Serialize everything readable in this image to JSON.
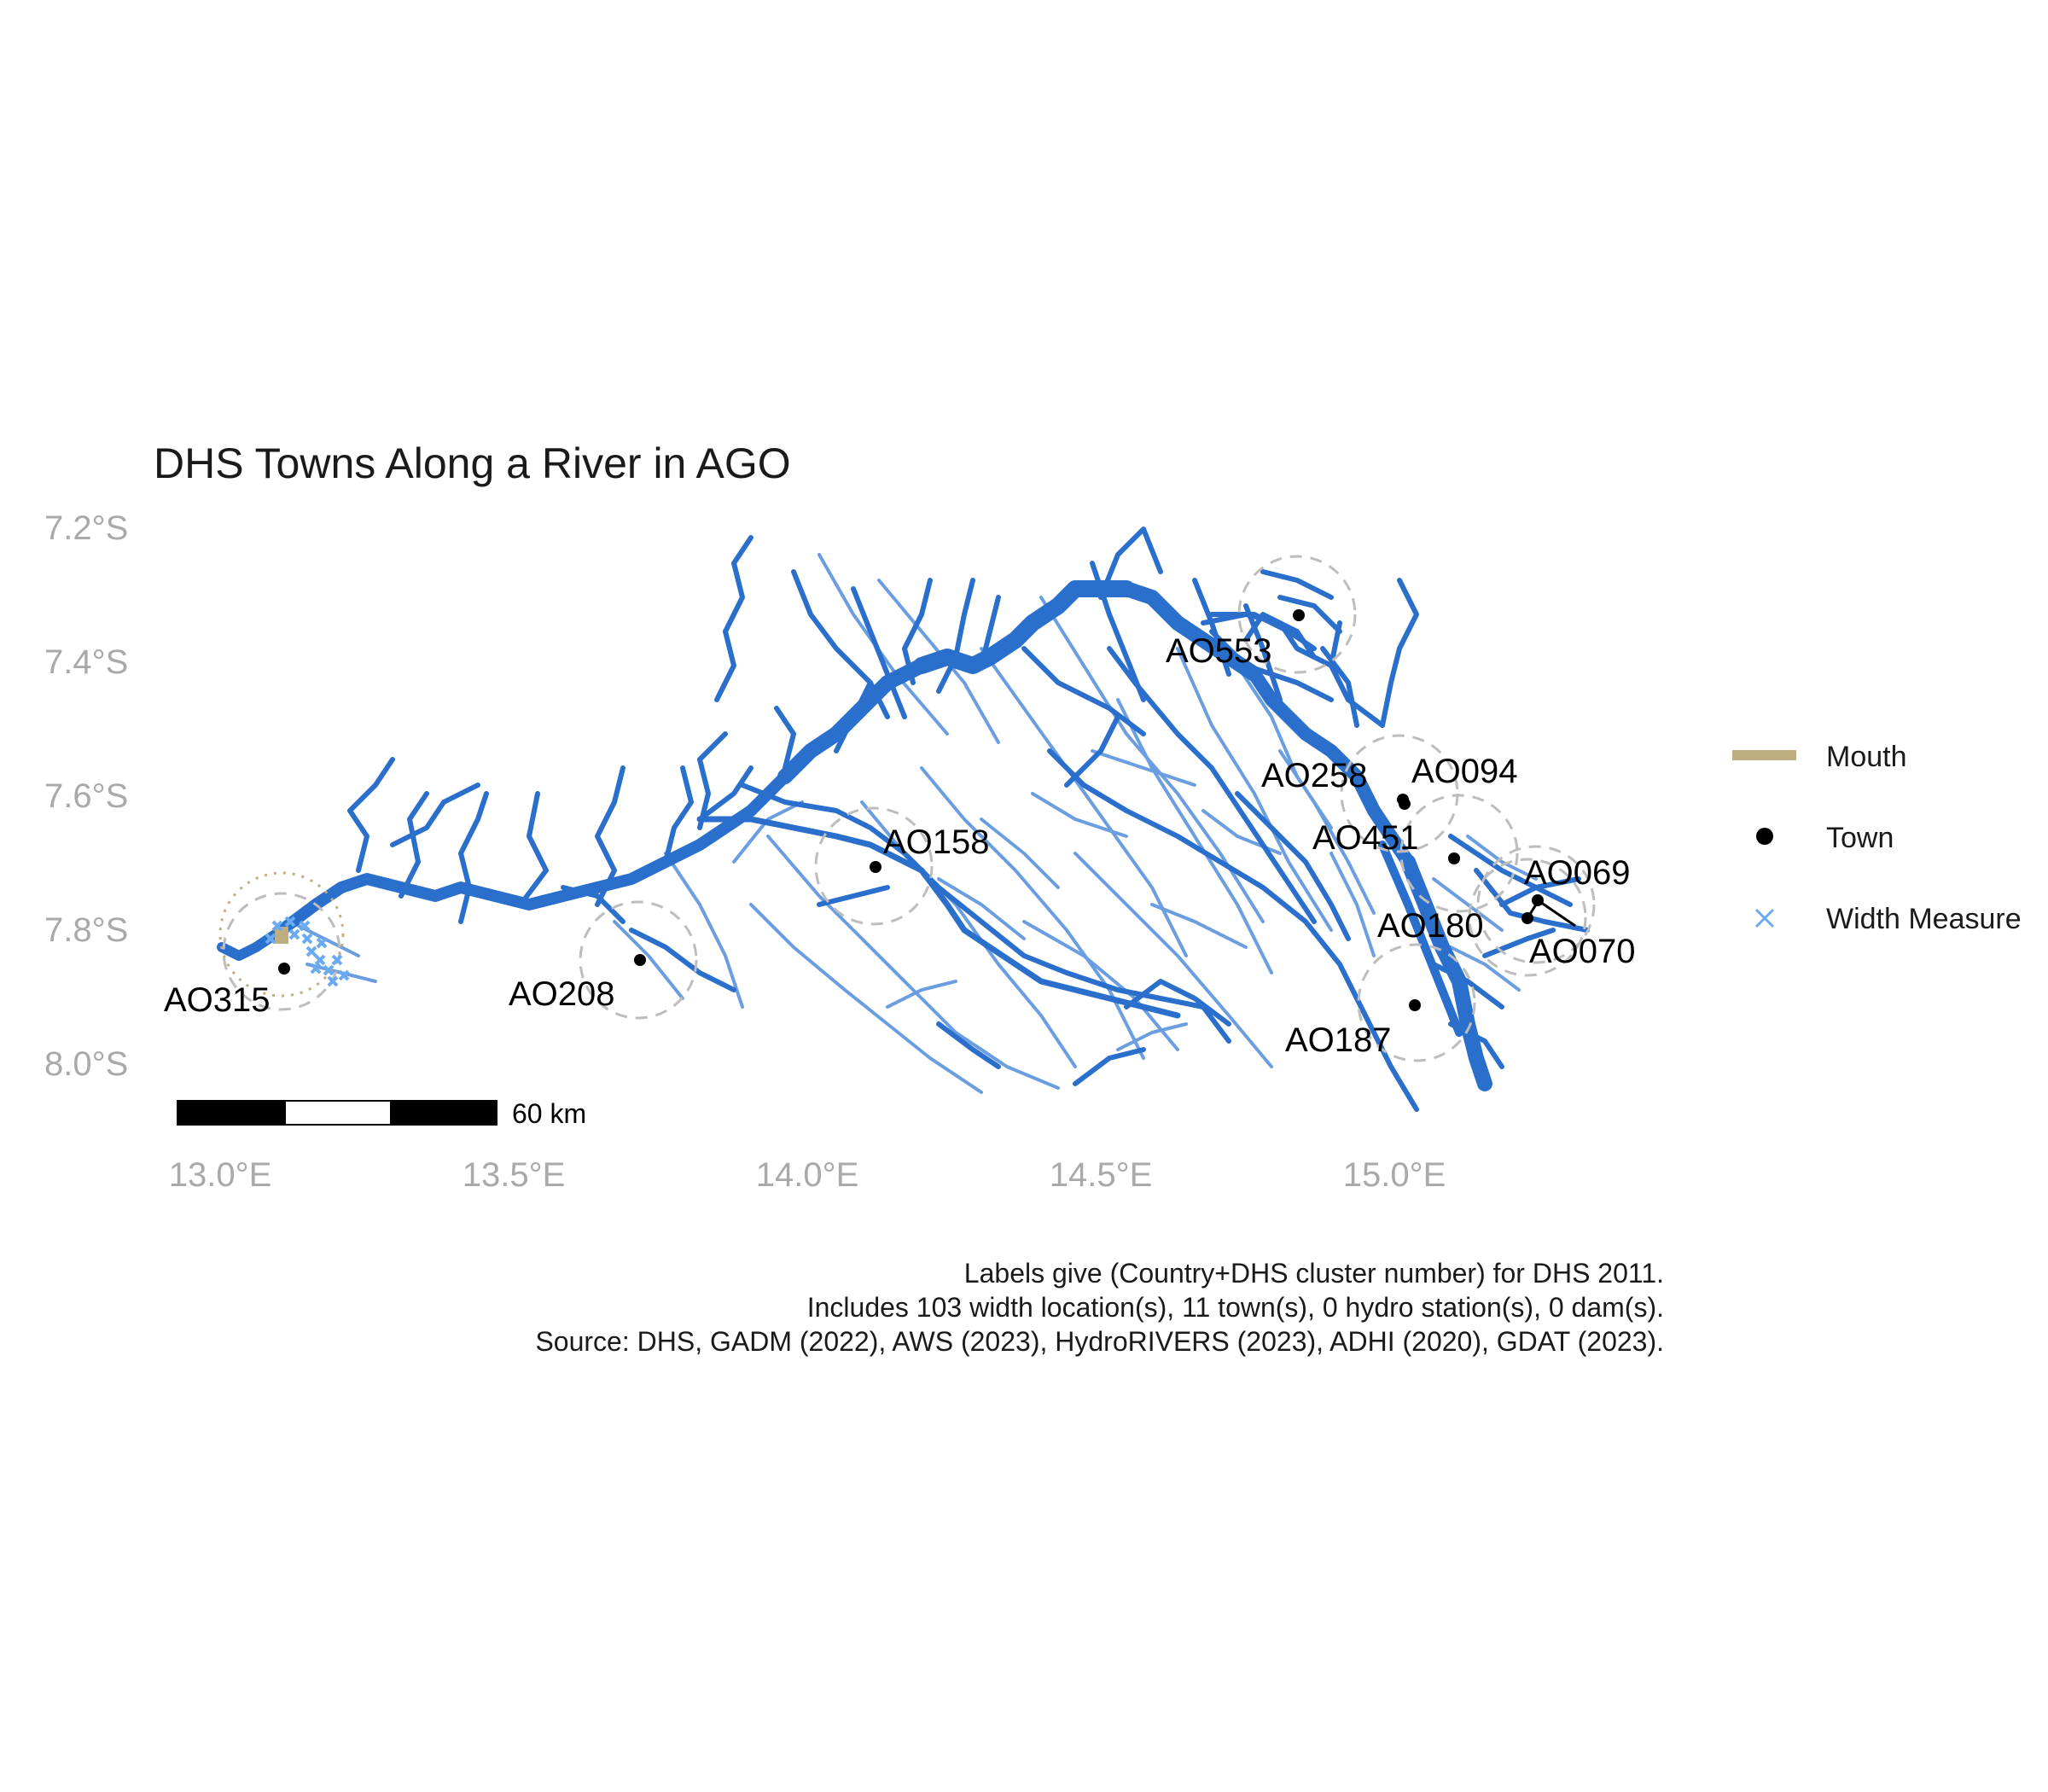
{
  "title": "DHS Towns Along a River in AGO",
  "axes": {
    "x_ticks": [
      "13.0°E",
      "13.5°E",
      "14.0°E",
      "14.5°E",
      "15.0°E"
    ],
    "y_ticks": [
      "7.2°S",
      "7.4°S",
      "7.6°S",
      "7.8°S",
      "8.0°S"
    ]
  },
  "scale_bar": {
    "label": "60 km"
  },
  "legend": {
    "items": [
      {
        "label": "Mouth",
        "symbol": "line",
        "color": "#bfae80"
      },
      {
        "label": "Town",
        "symbol": "dot",
        "color": "#000000"
      },
      {
        "label": "Width Measure",
        "symbol": "cross",
        "color": "#6aaaf0"
      }
    ]
  },
  "colors": {
    "river_main": "#2a6fcc",
    "river_minor": "#6b9ee0",
    "width_measure": "#6aaaf0",
    "mouth": "#bfae80",
    "buffer": "#bdbdbd"
  },
  "towns": [
    {
      "id": "AO315",
      "lon": 13.11,
      "lat": -7.86
    },
    {
      "id": "AO208",
      "lon": 13.72,
      "lat": -7.85
    },
    {
      "id": "AO158",
      "lon": 14.13,
      "lat": -7.71
    },
    {
      "id": "AO553",
      "lon": 14.85,
      "lat": -7.33
    },
    {
      "id": "AO258",
      "lon": 15.03,
      "lat": -7.61
    },
    {
      "id": "AO094",
      "lon": 15.03,
      "lat": -7.61
    },
    {
      "id": "AO451",
      "lon": 15.1,
      "lat": -7.69
    },
    {
      "id": "AO069",
      "lon": 15.26,
      "lat": -7.76
    },
    {
      "id": "AO070",
      "lon": 15.26,
      "lat": -7.76
    },
    {
      "id": "AO180",
      "lon": 15.24,
      "lat": -7.78
    },
    {
      "id": "AO187",
      "lon": 15.04,
      "lat": -7.91
    }
  ],
  "captions": [
    "Labels give (Country+DHS cluster number) for DHS 2011.",
    "Includes 103 width location(s), 11 town(s), 0 hydro station(s), 0 dam(s).",
    "Source: DHS, GADM (2022), AWS (2023), HydroRIVERS (2023), ADHI (2020), GDAT (2023)."
  ]
}
